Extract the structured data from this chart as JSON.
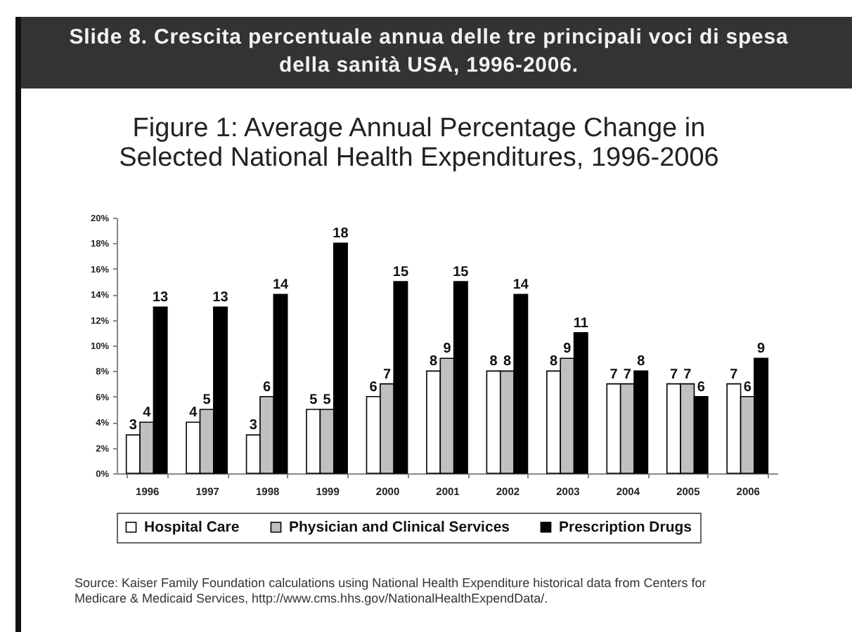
{
  "chart_data": {
    "type": "bar",
    "title": "Slide 8. Crescita percentuale annua delle tre principali voci di spesa della sanità USA, 1996-2006.",
    "subtitle": "Figure 1: Average Annual Percentage Change in Selected National Health Expenditures, 1996-2006",
    "categories": [
      "1996",
      "1997",
      "1998",
      "1999",
      "2000",
      "2001",
      "2002",
      "2003",
      "2004",
      "2005",
      "2006"
    ],
    "series": [
      {
        "name": "Hospital Care",
        "color": "#ffffff",
        "values": [
          3,
          4,
          3,
          5,
          6,
          8,
          8,
          8,
          7,
          7,
          7
        ]
      },
      {
        "name": "Physician and Clinical Services",
        "color": "#c0c0c0",
        "values": [
          4,
          5,
          6,
          5,
          7,
          9,
          8,
          9,
          7,
          7,
          6
        ]
      },
      {
        "name": "Prescription Drugs",
        "color": "#000000",
        "values": [
          13,
          13,
          14,
          18,
          15,
          15,
          14,
          11,
          8,
          6,
          9
        ]
      }
    ],
    "ylim": [
      0,
      20
    ],
    "yticks": [
      {
        "value": 0,
        "label": "0%"
      },
      {
        "value": 2,
        "label": "2%"
      },
      {
        "value": 4,
        "label": "4%"
      },
      {
        "value": 6,
        "label": "6%"
      },
      {
        "value": 8,
        "label": "8%"
      },
      {
        "value": 10,
        "label": "10%"
      },
      {
        "value": 12,
        "label": "12%"
      },
      {
        "value": 14,
        "label": "14%"
      },
      {
        "value": 16,
        "label": "16%"
      },
      {
        "value": 18,
        "label": "18%"
      },
      {
        "value": 20,
        "label": "20%"
      }
    ],
    "data_labels": true,
    "legend": "bottom",
    "annotations": [
      "Source: Kaiser Family Foundation calculations using National Health Expenditure historical data from Centers for Medicare & Medicaid Services, http://www.cms.hhs.gov/NationalHealthExpendData/."
    ]
  }
}
